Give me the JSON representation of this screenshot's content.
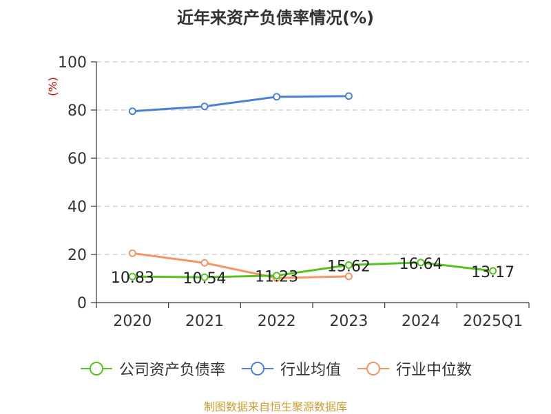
{
  "chart_data": {
    "type": "line",
    "title": "近年来资产负债率情况(%)",
    "ylabel": "(%)",
    "categories": [
      "2020",
      "2021",
      "2022",
      "2023",
      "2024",
      "2025Q1"
    ],
    "ylim": [
      0,
      100
    ],
    "yticks": [
      0,
      20,
      40,
      60,
      80,
      100
    ],
    "grid": true,
    "legend_position": "bottom",
    "series": [
      {
        "name": "公司资产负债率",
        "color": "#52c41a",
        "values": [
          10.83,
          10.54,
          11.23,
          15.62,
          16.64,
          13.17
        ],
        "labels": [
          "10.83",
          "10.54",
          "11.23",
          "15.62",
          "16.64",
          "13.17"
        ]
      },
      {
        "name": "行业均值",
        "color": "#4a7fd8",
        "values": [
          79.5,
          81.5,
          85.5,
          85.8,
          null,
          null
        ]
      },
      {
        "name": "行业中位数",
        "color": "#f59462",
        "values": [
          20.5,
          16.5,
          10.2,
          10.9,
          null,
          null
        ]
      }
    ]
  },
  "source_note": "制图数据来自恒生聚源数据库"
}
